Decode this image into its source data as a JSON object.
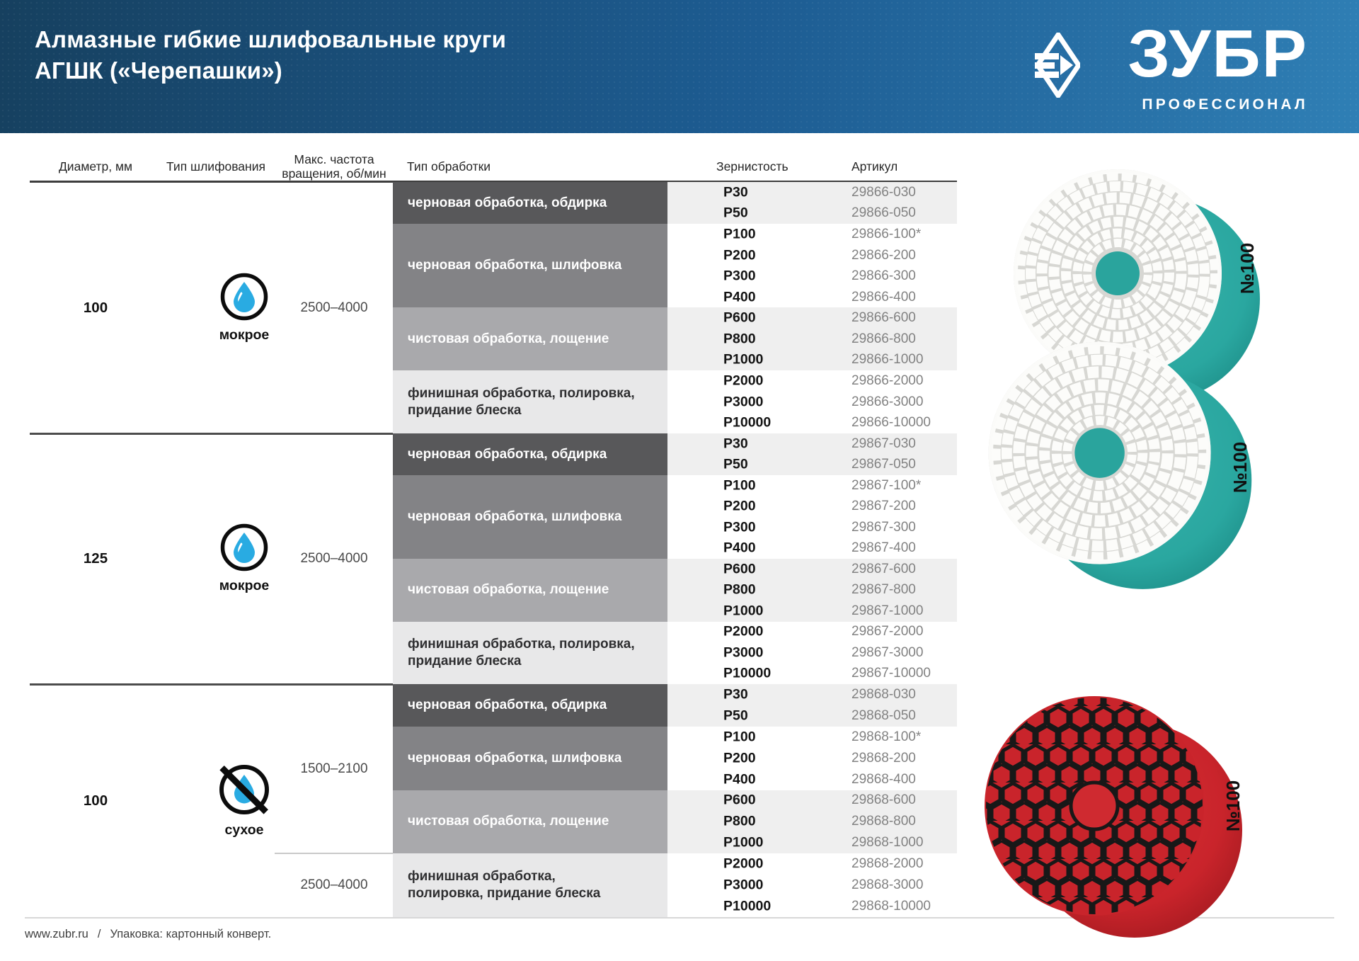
{
  "header": {
    "title_line1": "Алмазные гибкие шлифовальные круги",
    "title_line2": "АГШК («Черепашки»)",
    "brand": "ЗУБР",
    "brand_sub": "ПРОФЕССИОНАЛ"
  },
  "columns": {
    "diameter": "Диаметр, мм",
    "grinding": "Тип шлифования",
    "speed": "Макс. частота\nвращения, об/мин",
    "processing": "Тип обработки",
    "grit": "Зернистость",
    "article": "Артикул"
  },
  "colors": {
    "banner_blue_dark": "#16405f",
    "banner_blue_light": "#2f7fb5",
    "drop_blue": "#29abe2",
    "teal_backing": "#2aa7a0",
    "red_pad": "#c9242b",
    "block_dark": "#58585a",
    "block_medium": "#838386",
    "block_light": "#a9a9ac",
    "block_pale": "#e8e8e9"
  },
  "table": {
    "groups": [
      {
        "diameter": "100",
        "grinding": {
          "icon": "wet-drop-icon",
          "label": "мокрое"
        },
        "speeds": [
          {
            "value": "2500–4000",
            "span": 4
          }
        ],
        "blocks": [
          {
            "label": "черновая обработка, обдирка",
            "shade": "dark",
            "rows": [
              [
                "P30",
                "29866-030"
              ],
              [
                "P50",
                "29866-050"
              ]
            ]
          },
          {
            "label": "черновая обработка, шлифовка",
            "shade": "medium",
            "rows": [
              [
                "P100",
                "29866-100*"
              ],
              [
                "P200",
                "29866-200"
              ],
              [
                "P300",
                "29866-300"
              ],
              [
                "P400",
                "29866-400"
              ]
            ]
          },
          {
            "label": "чистовая обработка, лощение",
            "shade": "light",
            "rows": [
              [
                "P600",
                "29866-600"
              ],
              [
                "P800",
                "29866-800"
              ],
              [
                "P1000",
                "29866-1000"
              ]
            ]
          },
          {
            "label": "финишная обработка, полировка,\nпридание блеска",
            "shade": "pale",
            "rows": [
              [
                "P2000",
                "29866-2000"
              ],
              [
                "P3000",
                "29866-3000"
              ],
              [
                "P10000",
                "29866-10000"
              ]
            ]
          }
        ]
      },
      {
        "diameter": "125",
        "grinding": {
          "icon": "wet-drop-icon",
          "label": "мокрое"
        },
        "speeds": [
          {
            "value": "2500–4000",
            "span": 4
          }
        ],
        "blocks": [
          {
            "label": "черновая обработка, обдирка",
            "shade": "dark",
            "rows": [
              [
                "P30",
                "29867-030"
              ],
              [
                "P50",
                "29867-050"
              ]
            ]
          },
          {
            "label": "черновая обработка, шлифовка",
            "shade": "medium",
            "rows": [
              [
                "P100",
                "29867-100*"
              ],
              [
                "P200",
                "29867-200"
              ],
              [
                "P300",
                "29867-300"
              ],
              [
                "P400",
                "29867-400"
              ]
            ]
          },
          {
            "label": "чистовая обработка, лощение",
            "shade": "light",
            "rows": [
              [
                "P600",
                "29867-600"
              ],
              [
                "P800",
                "29867-800"
              ],
              [
                "P1000",
                "29867-1000"
              ]
            ]
          },
          {
            "label": "финишная обработка, полировка,\nпридание блеска",
            "shade": "pale",
            "rows": [
              [
                "P2000",
                "29867-2000"
              ],
              [
                "P3000",
                "29867-3000"
              ],
              [
                "P10000",
                "29867-10000"
              ]
            ]
          }
        ]
      },
      {
        "diameter": "100",
        "grinding": {
          "icon": "no-water-icon",
          "label": "сухое"
        },
        "speeds": [
          {
            "value": "1500–2100",
            "span": 3
          },
          {
            "value": "2500–4000",
            "span": 1
          }
        ],
        "blocks": [
          {
            "label": "черновая обработка, обдирка",
            "shade": "dark",
            "rows": [
              [
                "P30",
                "29868-030"
              ],
              [
                "P50",
                "29868-050"
              ]
            ]
          },
          {
            "label": "черновая обработка, шлифовка",
            "shade": "medium",
            "rows": [
              [
                "P100",
                "29868-100*"
              ],
              [
                "P200",
                "29868-200"
              ],
              [
                "P400",
                "29868-400"
              ]
            ]
          },
          {
            "label": "чистовая обработка, лощение",
            "shade": "light",
            "rows": [
              [
                "P600",
                "29868-600"
              ],
              [
                "P800",
                "29868-800"
              ],
              [
                "P1000",
                "29868-1000"
              ]
            ]
          },
          {
            "label": "финишная обработка,\nполировка, придание блеска",
            "shade": "pale",
            "rows": [
              [
                "P2000",
                "29868-2000"
              ],
              [
                "P3000",
                "29868-3000"
              ],
              [
                "P10000",
                "29868-10000"
              ]
            ]
          }
        ]
      }
    ]
  },
  "products": [
    {
      "label": "№100"
    },
    {
      "label": "№100"
    },
    {
      "label": "№100"
    }
  ],
  "footer": {
    "url": "www.zubr.ru",
    "sep": "/",
    "note": "Упаковка: картонный конверт."
  }
}
